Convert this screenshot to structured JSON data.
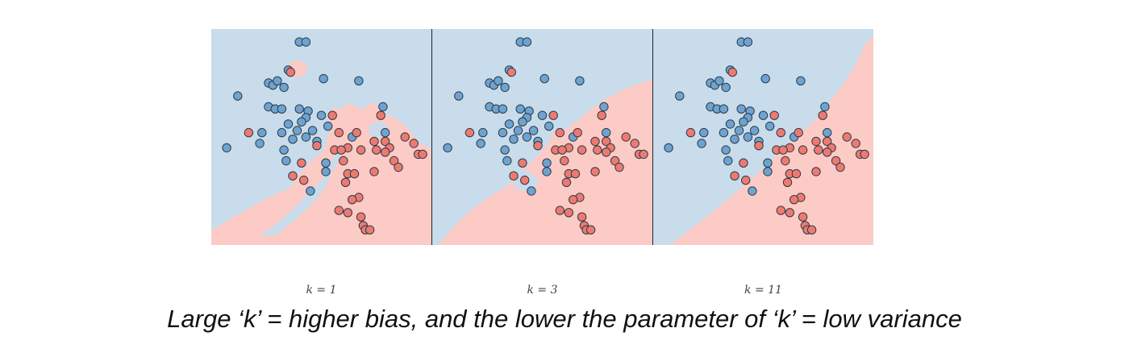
{
  "caption": "Large ‘k’ =  higher bias, and the lower the parameter of ‘k’ = low variance",
  "colors": {
    "class_a": "#6fa3cf",
    "class_b": "#ee7a6f",
    "region_a": "#c8dcec",
    "region_b": "#fdcbc6",
    "stroke": "#2b3b4b"
  },
  "chart_data": {
    "type": "scatter",
    "panels": [
      {
        "k_label": "k = 1"
      },
      {
        "k_label": "k = 3"
      },
      {
        "k_label": "k = 11"
      }
    ],
    "xlim": [
      0,
      10
    ],
    "ylim": [
      0,
      10
    ],
    "series": [
      {
        "class": "blue",
        "points": [
          [
            4.0,
            9.4
          ],
          [
            4.3,
            9.4
          ],
          [
            3.5,
            8.1
          ],
          [
            2.6,
            7.5
          ],
          [
            2.8,
            7.4
          ],
          [
            3.0,
            7.6
          ],
          [
            3.3,
            7.3
          ],
          [
            5.1,
            7.7
          ],
          [
            6.7,
            7.6
          ],
          [
            1.2,
            6.9
          ],
          [
            2.6,
            6.4
          ],
          [
            2.9,
            6.3
          ],
          [
            3.2,
            6.3
          ],
          [
            4.0,
            6.3
          ],
          [
            4.4,
            6.2
          ],
          [
            4.3,
            5.9
          ],
          [
            5.0,
            6.0
          ],
          [
            7.8,
            6.4
          ],
          [
            3.5,
            5.6
          ],
          [
            3.9,
            5.3
          ],
          [
            4.1,
            5.7
          ],
          [
            4.6,
            5.3
          ],
          [
            5.3,
            5.5
          ],
          [
            2.3,
            5.2
          ],
          [
            3.2,
            5.2
          ],
          [
            3.7,
            4.9
          ],
          [
            4.3,
            5.0
          ],
          [
            4.8,
            4.8
          ],
          [
            6.4,
            5.0
          ],
          [
            7.9,
            5.2
          ],
          [
            0.7,
            4.5
          ],
          [
            2.2,
            4.7
          ],
          [
            3.3,
            4.4
          ],
          [
            3.4,
            3.9
          ],
          [
            5.2,
            3.8
          ],
          [
            5.2,
            3.4
          ],
          [
            4.5,
            2.5
          ]
        ]
      },
      {
        "class": "red",
        "points": [
          [
            3.6,
            8.0
          ],
          [
            5.5,
            6.0
          ],
          [
            7.7,
            6.0
          ],
          [
            1.7,
            5.2
          ],
          [
            5.8,
            5.2
          ],
          [
            6.6,
            5.2
          ],
          [
            8.8,
            5.0
          ],
          [
            4.8,
            4.6
          ],
          [
            6.2,
            4.5
          ],
          [
            7.4,
            4.8
          ],
          [
            7.9,
            4.8
          ],
          [
            8.1,
            4.5
          ],
          [
            9.2,
            4.7
          ],
          [
            9.4,
            4.2
          ],
          [
            9.6,
            4.2
          ],
          [
            5.6,
            4.4
          ],
          [
            5.9,
            4.4
          ],
          [
            6.8,
            4.4
          ],
          [
            7.5,
            4.4
          ],
          [
            7.9,
            4.3
          ],
          [
            4.1,
            3.8
          ],
          [
            6.0,
            3.9
          ],
          [
            8.3,
            3.9
          ],
          [
            8.5,
            3.6
          ],
          [
            3.7,
            3.2
          ],
          [
            4.2,
            3.0
          ],
          [
            6.2,
            3.3
          ],
          [
            6.5,
            3.3
          ],
          [
            7.4,
            3.4
          ],
          [
            6.1,
            2.9
          ],
          [
            6.7,
            2.2
          ],
          [
            6.4,
            2.1
          ],
          [
            5.8,
            1.6
          ],
          [
            6.2,
            1.5
          ],
          [
            6.8,
            1.3
          ],
          [
            6.9,
            0.9
          ],
          [
            7.0,
            0.7
          ],
          [
            7.2,
            0.7
          ]
        ]
      }
    ]
  }
}
